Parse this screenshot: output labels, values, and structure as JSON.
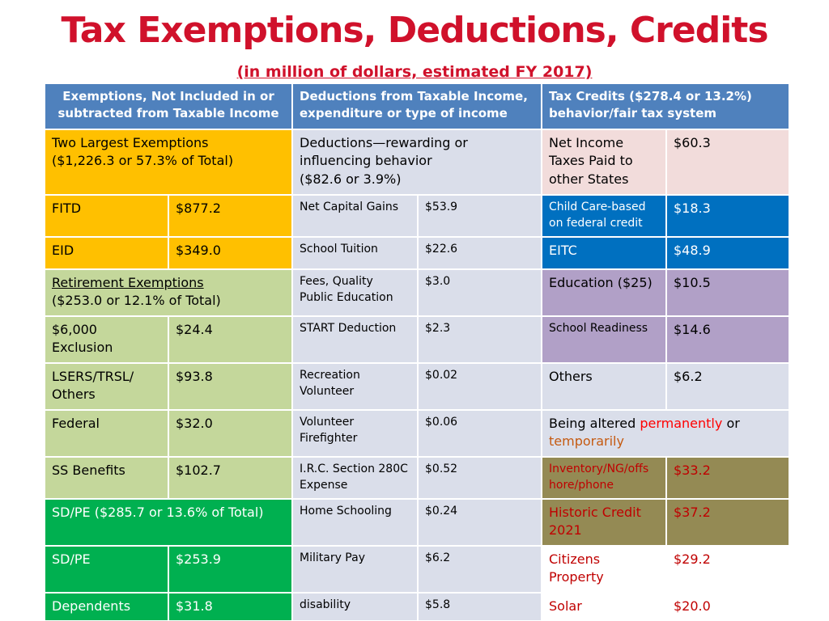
{
  "header": {
    "title": "Tax Exemptions, Deductions, Credits",
    "subtitle": "(in million of dollars, estimated FY 2017)"
  },
  "table": {
    "header": [
      [
        "Exemptions, Not Included in or",
        "subtracted from Taxable Income"
      ],
      [
        "Deductions from Taxable Income,",
        "expenditure or type of income"
      ],
      [
        "Tax Credits ($278.4 or 13.2%)",
        "behavior/fair tax system"
      ]
    ],
    "rows": [
      [
        [
          "Two Largest Exemptions",
          "($1,226.3 or 57.3% of Total)"
        ],
        [
          "Deductions—rewarding or",
          "influencing behavior",
          "($82.6 or 3.9%)"
        ],
        [
          "Net Income",
          "Taxes Paid to",
          "other States"
        ],
        "$60.3"
      ],
      [
        "FITD",
        "$877.2",
        "Net Capital Gains",
        "$53.9",
        [
          "Child Care-based",
          "on federal credit"
        ],
        "$18.3"
      ],
      [
        "EID",
        "$349.0",
        "School Tuition",
        "$22.6",
        "EITC",
        "$48.9"
      ],
      [
        [
          "Retirement Exemptions",
          "($253.0 or 12.1% of Total)"
        ],
        [
          "Fees, Quality",
          "Public Education"
        ],
        "$3.0",
        "Education ($25)",
        "$10.5"
      ],
      [
        [
          "$6,000",
          "Exclusion"
        ],
        "$24.4",
        "START Deduction",
        "$2.3",
        "School Readiness",
        "$14.6"
      ],
      [
        [
          "LSERS/TRSL/",
          "Others"
        ],
        "$93.8",
        [
          "Recreation",
          "Volunteer"
        ],
        "$0.02",
        "Others",
        "$6.2"
      ],
      [
        "Federal",
        "$32.0",
        [
          "Volunteer",
          "Firefighter"
        ],
        "$0.06",
        [
          "Being altered",
          "permanently",
          "or",
          "temporarily"
        ]
      ],
      [
        "SS Benefits",
        "$102.7",
        [
          "I.R.C. Section 280C",
          "Expense"
        ],
        "$0.52",
        [
          "Inventory/NG/offs",
          "hore/phone"
        ],
        "$33.2"
      ],
      [
        "SD/PE ($285.7 or 13.6% of Total)",
        "Home Schooling",
        "$0.24",
        [
          "Historic Credit",
          "2021"
        ],
        "$37.2"
      ],
      [
        "SD/PE",
        "$253.9",
        "Military Pay",
        "$6.2",
        [
          "Citizens",
          "Property"
        ],
        "$29.2"
      ],
      [
        "Dependents",
        "$31.8",
        "disability",
        "$5.8",
        "Solar",
        "$20.0"
      ]
    ]
  }
}
